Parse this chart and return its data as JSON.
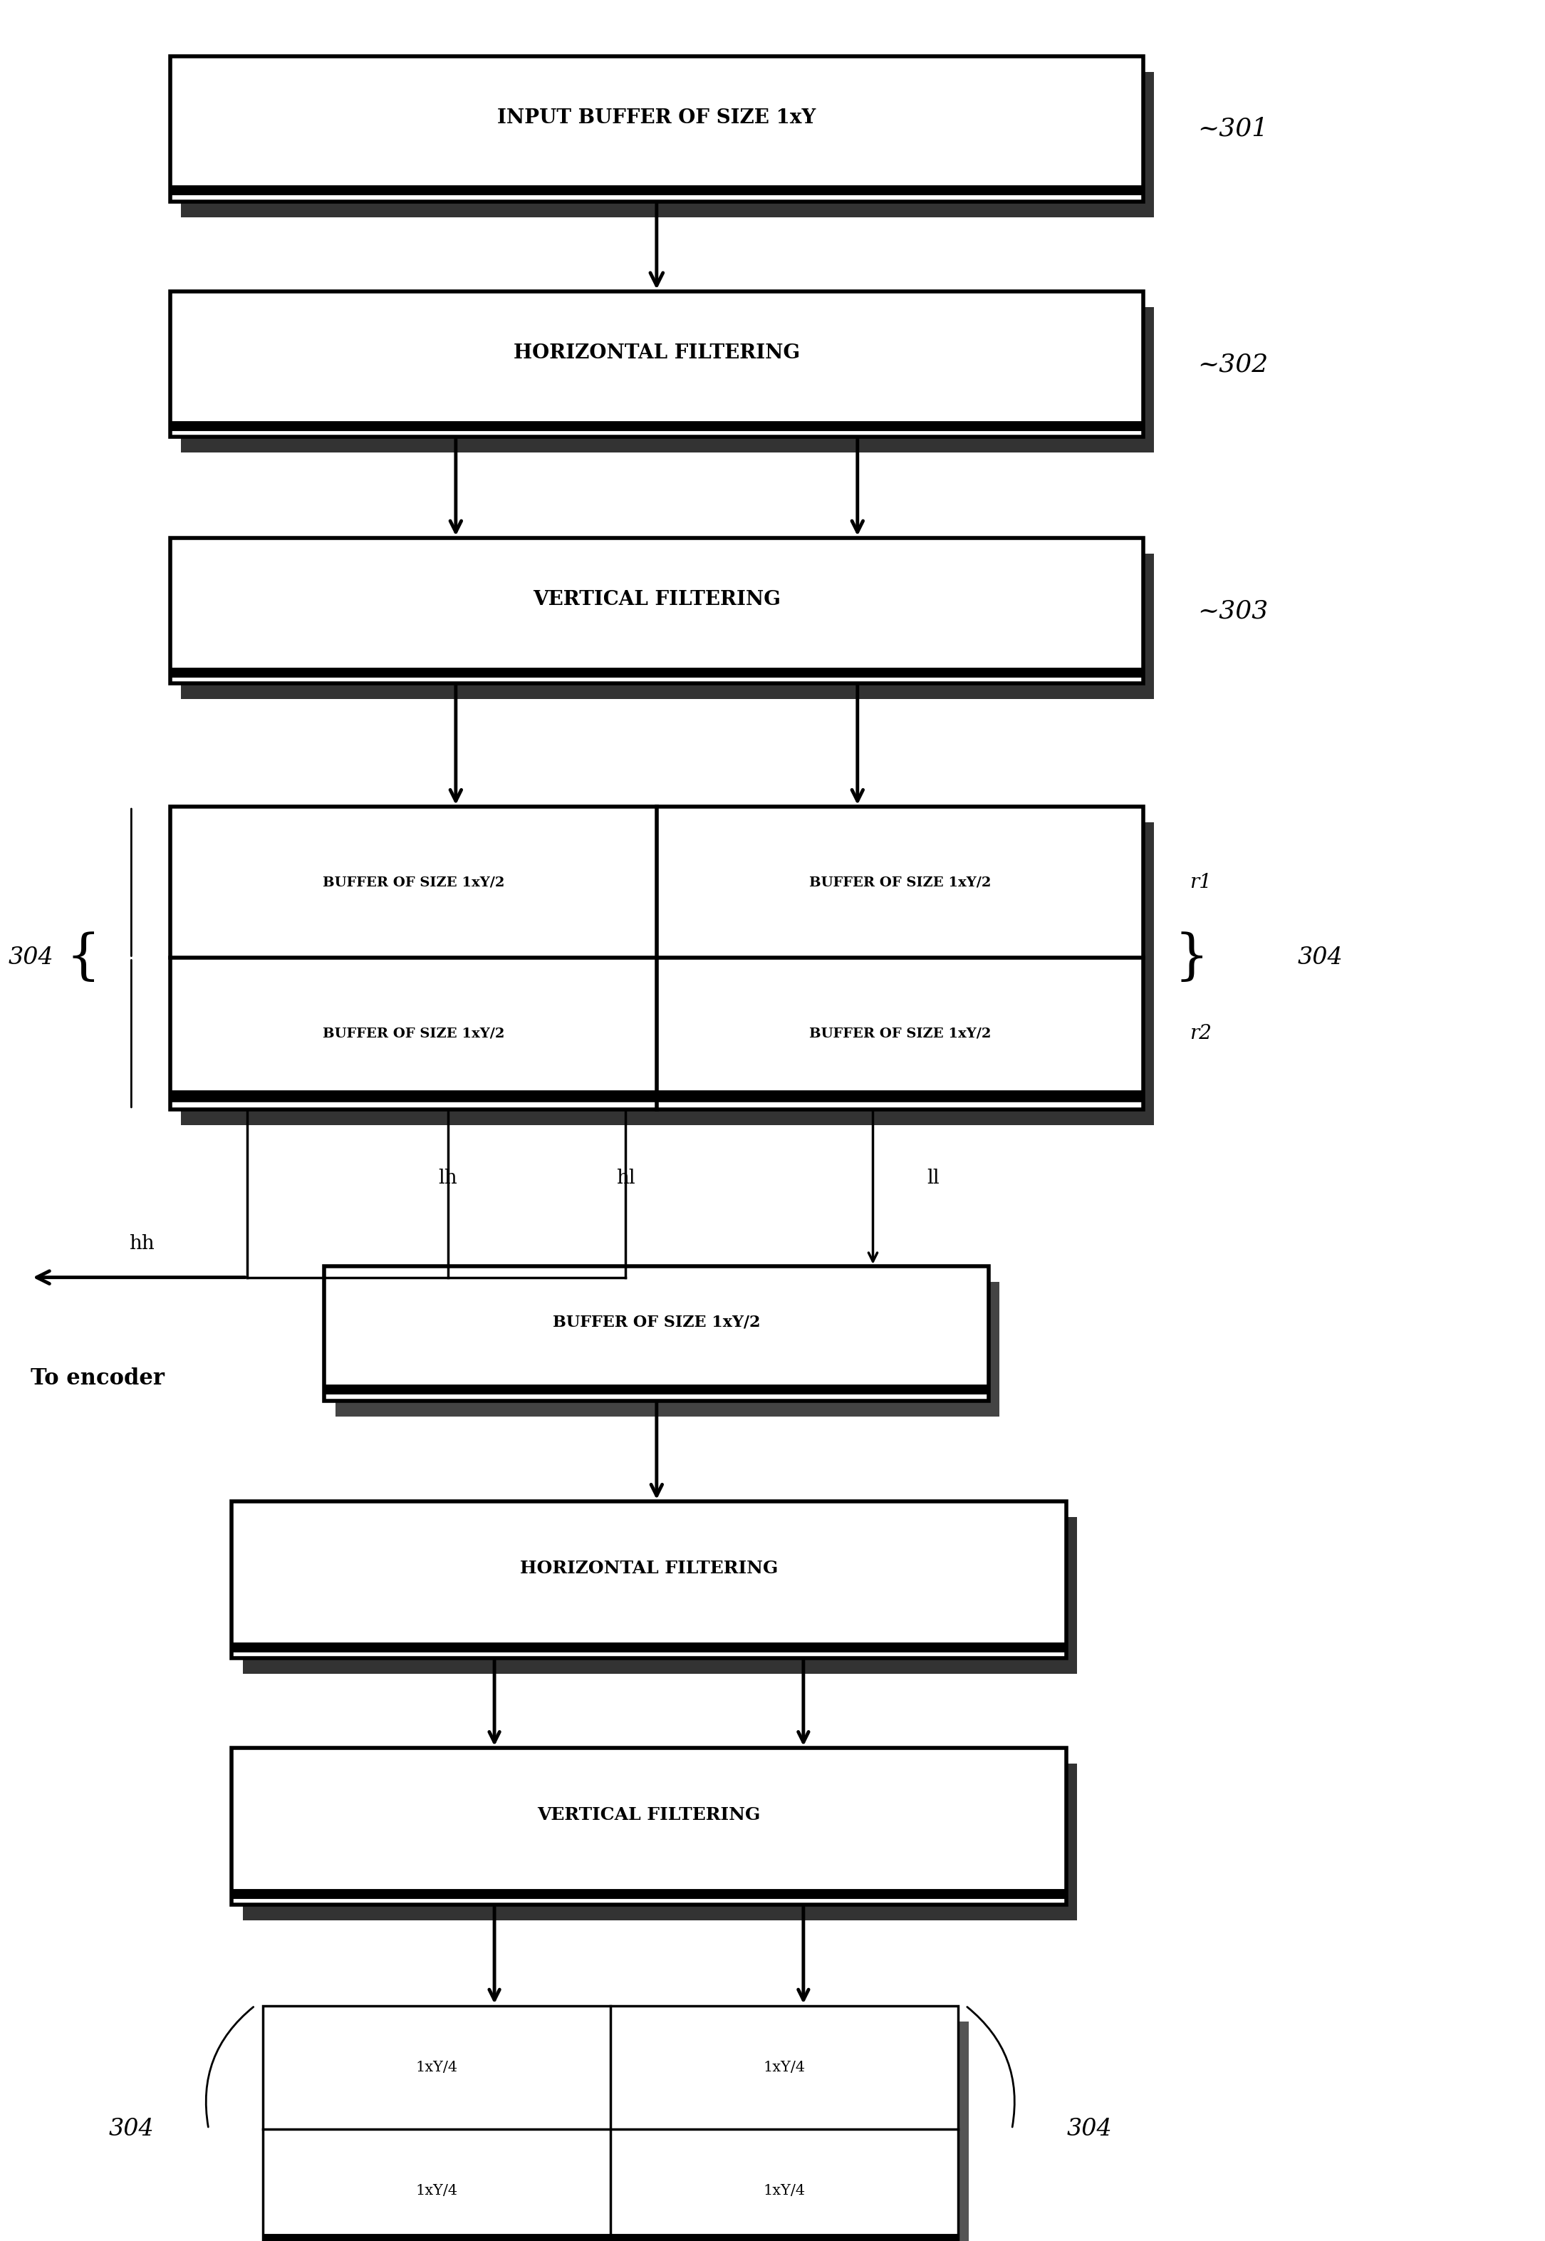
{
  "bg_color": "#ffffff",
  "fig_width": 21.69,
  "fig_height": 31.45,
  "box1_label": "INPUT BUFFER OF SIZE 1xY",
  "box2_label": "HORIZONTAL FILTERING",
  "box3_label": "VERTICAL FILTERING",
  "box4_sub": [
    "BUFFER OF SIZE 1xY/2",
    "BUFFER OF SIZE 1xY/2",
    "BUFFER OF SIZE 1xY/2",
    "BUFFER OF SIZE 1xY/2"
  ],
  "box5_label": "BUFFER OF SIZE 1xY/2",
  "box6_label": "HORIZONTAL FILTERING",
  "box7_label": "VERTICAL FILTERING",
  "box8_sub": [
    "1xY/4",
    "1xY/4",
    "1xY/4",
    "1xY/4"
  ],
  "ref1": "~301",
  "ref2": "~302",
  "ref3": "~303",
  "ref4": "304",
  "label_hh": "hh",
  "label_lh": "lh",
  "label_hl": "hl",
  "label_ll": "ll",
  "label_r1": "r1",
  "label_r2": "r2",
  "to_encoder": "To encoder"
}
